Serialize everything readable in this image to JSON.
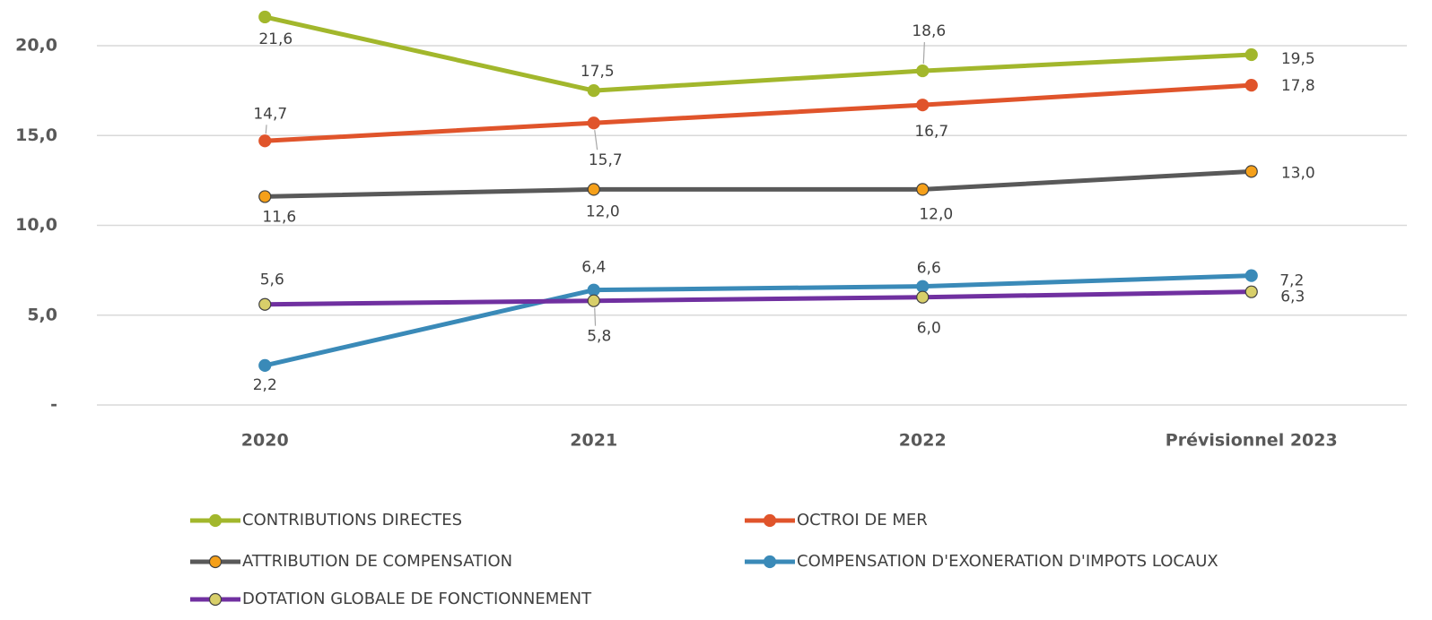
{
  "chart_data": {
    "type": "line",
    "categories": [
      "2020",
      "2021",
      "2022",
      "Prévisionnel 2023"
    ],
    "ylim": [
      0,
      22
    ],
    "yticks": [
      {
        "value": 0,
        "label": "-"
      },
      {
        "value": 5,
        "label": "5,0"
      },
      {
        "value": 10,
        "label": "10,0"
      },
      {
        "value": 15,
        "label": "15,0"
      },
      {
        "value": 20,
        "label": "20,0"
      }
    ],
    "grid": true,
    "legend": "bottom",
    "series": [
      {
        "name": "CONTRIBUTIONS DIRECTES",
        "color": "#a2b72c",
        "marker_color": "#a2b72c",
        "values": [
          21.6,
          17.5,
          18.6,
          19.5
        ],
        "value_labels": [
          "21,6",
          "17,5",
          "18,6",
          "19,5"
        ]
      },
      {
        "name": "OCTROI DE MER",
        "color": "#e0542b",
        "marker_color": "#e0542b",
        "values": [
          14.7,
          15.7,
          16.7,
          17.8
        ],
        "value_labels": [
          "14,7",
          "15,7",
          "16,7",
          "17,8"
        ]
      },
      {
        "name": "ATTRIBUTION DE COMPENSATION",
        "color": "#595959",
        "marker_color": "#f5a01a",
        "values": [
          11.6,
          12.0,
          12.0,
          13.0
        ],
        "value_labels": [
          "11,6",
          "12,0",
          "12,0",
          "13,0"
        ]
      },
      {
        "name": "COMPENSATION D'EXONERATION D'IMPOTS LOCAUX",
        "color": "#3a8ab8",
        "marker_color": "#3a8ab8",
        "values": [
          2.2,
          6.4,
          6.6,
          7.2
        ],
        "value_labels": [
          "2,2",
          "6,4",
          "6,6",
          "7,2"
        ]
      },
      {
        "name": "DOTATION GLOBALE DE FONCTIONNEMENT",
        "color": "#7030a0",
        "marker_color": "#d8cf6a",
        "values": [
          5.6,
          5.8,
          6.0,
          6.3
        ],
        "value_labels": [
          "5,6",
          "5,8",
          "6,0",
          "6,3"
        ]
      }
    ]
  }
}
